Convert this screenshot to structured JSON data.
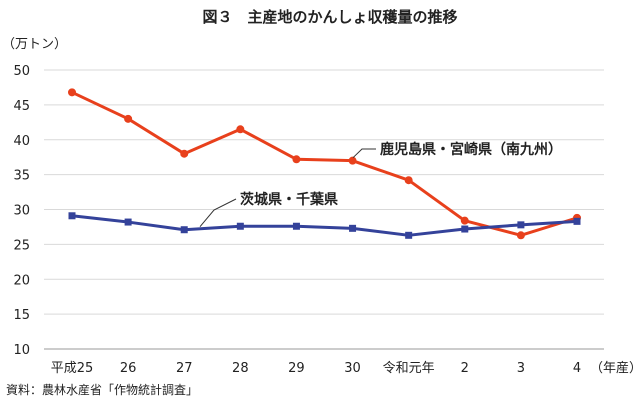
{
  "chart_data": {
    "type": "line",
    "title": "図３　主産地のかんしょ収穫量の推移",
    "ylabel": "（万トン）",
    "xlabel": "（年産）",
    "categories": [
      "平成25",
      "26",
      "27",
      "28",
      "29",
      "30",
      "令和元年",
      "2",
      "3",
      "4"
    ],
    "ylim": [
      10,
      50
    ],
    "yticks": [
      10,
      15,
      20,
      25,
      30,
      35,
      40,
      45,
      50
    ],
    "grid": true,
    "series": [
      {
        "name": "鹿児島県・宮崎県（南九州）",
        "color": "#e8401c",
        "marker": "circle",
        "values": [
          46.8,
          43.0,
          38.0,
          41.5,
          37.2,
          37.0,
          34.2,
          28.4,
          26.3,
          28.8
        ]
      },
      {
        "name": "茨城県・千葉県",
        "color": "#34429a",
        "marker": "square",
        "values": [
          29.1,
          28.2,
          27.1,
          27.6,
          27.6,
          27.3,
          26.3,
          27.2,
          27.8,
          28.3
        ]
      }
    ],
    "source": "資料：農林水産省「作物統計調査」"
  }
}
